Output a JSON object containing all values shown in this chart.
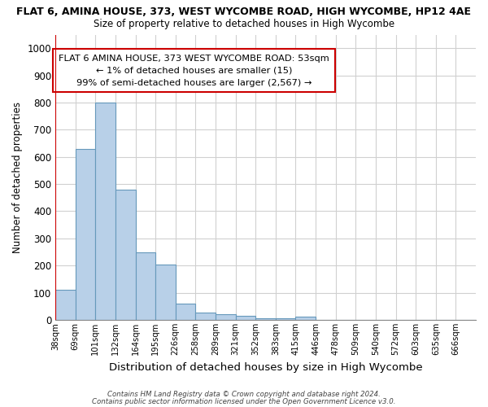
{
  "title": "FLAT 6, AMINA HOUSE, 373, WEST WYCOMBE ROAD, HIGH WYCOMBE, HP12 4AE",
  "subtitle": "Size of property relative to detached houses in High Wycombe",
  "xlabel": "Distribution of detached houses by size in High Wycombe",
  "ylabel": "Number of detached properties",
  "footnote1": "Contains HM Land Registry data © Crown copyright and database right 2024.",
  "footnote2": "Contains public sector information licensed under the Open Government Licence v3.0.",
  "bin_labels": [
    "38sqm",
    "69sqm",
    "101sqm",
    "132sqm",
    "164sqm",
    "195sqm",
    "226sqm",
    "258sqm",
    "289sqm",
    "321sqm",
    "352sqm",
    "383sqm",
    "415sqm",
    "446sqm",
    "478sqm",
    "509sqm",
    "540sqm",
    "572sqm",
    "603sqm",
    "635sqm",
    "666sqm"
  ],
  "values": [
    110,
    630,
    800,
    480,
    250,
    205,
    60,
    28,
    20,
    15,
    5,
    5,
    12,
    0,
    0,
    0,
    0,
    0,
    0,
    0,
    0
  ],
  "bar_color": "#b8d0e8",
  "bar_edge_color": "#6699bb",
  "annotation_line0": "FLAT 6 AMINA HOUSE, 373 WEST WYCOMBE ROAD: 53sqm",
  "annotation_line1": "← 1% of detached houses are smaller (15)",
  "annotation_line2": "99% of semi-detached houses are larger (2,567) →",
  "annotation_box_color": "#ffffff",
  "annotation_border_color": "#cc0000",
  "vline_color": "#cc0000",
  "ylim": [
    0,
    1050
  ],
  "yticks": [
    0,
    100,
    200,
    300,
    400,
    500,
    600,
    700,
    800,
    900,
    1000
  ],
  "background_color": "#ffffff",
  "grid_color": "#d0d0d0"
}
